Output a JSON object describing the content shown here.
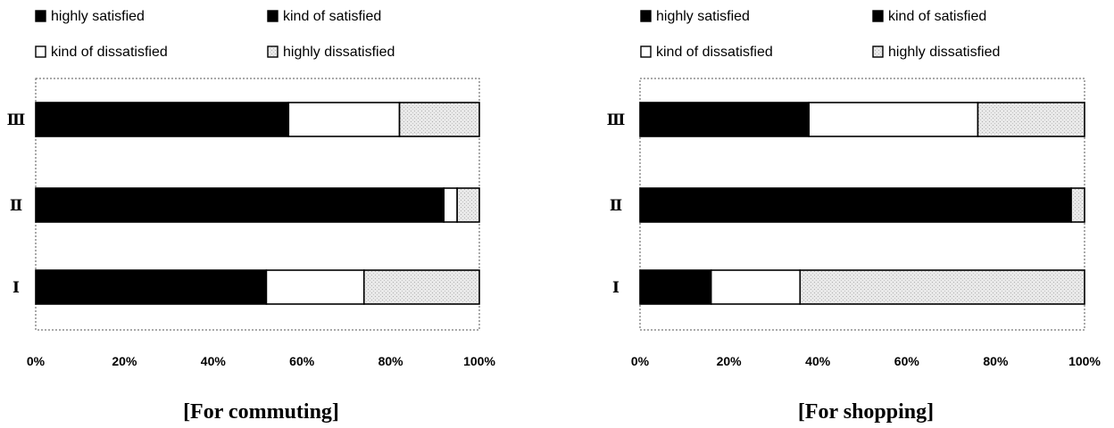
{
  "legend_labels": [
    "highly  satisfied",
    "kind of satisfied",
    "kind of dissatisfied",
    "highly dissatisfied"
  ],
  "colors": {
    "highly_satisfied": "#000000",
    "kind_of_satisfied": "#000000",
    "kind_of_dissatisfied": "#ffffff",
    "highly_dissatisfied": "#e6e6e6",
    "stroke": "#000000"
  },
  "chart_data": [
    {
      "type": "bar",
      "orientation": "horizontal",
      "stacked": true,
      "percent": true,
      "title": "[For commuting]",
      "categories": [
        "Ⅲ",
        "Ⅱ",
        "Ⅰ"
      ],
      "xlim": [
        0,
        100
      ],
      "x_ticks": [
        "0%",
        "20%",
        "40%",
        "60%",
        "80%",
        "100%"
      ],
      "legend_position": "top",
      "series": [
        {
          "name": "highly  satisfied",
          "values": [
            57,
            92,
            52
          ]
        },
        {
          "name": "kind of satisfied",
          "values": [
            0,
            0,
            0
          ]
        },
        {
          "name": "kind of dissatisfied",
          "values": [
            25,
            3,
            22
          ]
        },
        {
          "name": "highly dissatisfied",
          "values": [
            18,
            5,
            26
          ]
        }
      ]
    },
    {
      "type": "bar",
      "orientation": "horizontal",
      "stacked": true,
      "percent": true,
      "title": "[For shopping]",
      "categories": [
        "Ⅲ",
        "Ⅱ",
        "Ⅰ"
      ],
      "xlim": [
        0,
        100
      ],
      "x_ticks": [
        "0%",
        "20%",
        "40%",
        "60%",
        "80%",
        "100%"
      ],
      "legend_position": "top",
      "series": [
        {
          "name": "highly  satisfied",
          "values": [
            38,
            97,
            16
          ]
        },
        {
          "name": "kind of satisfied",
          "values": [
            0,
            0,
            0
          ]
        },
        {
          "name": "kind of dissatisfied",
          "values": [
            38,
            0,
            20
          ]
        },
        {
          "name": "highly dissatisfied",
          "values": [
            24,
            3,
            64
          ]
        }
      ]
    }
  ]
}
